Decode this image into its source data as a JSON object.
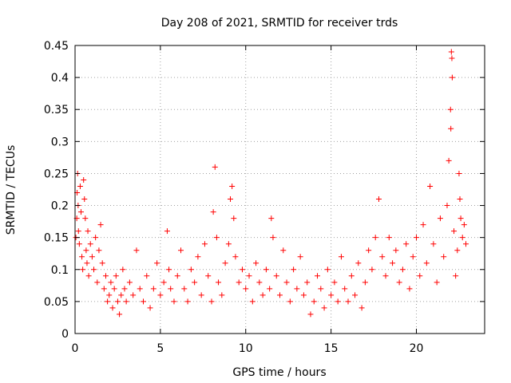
{
  "chart_data": {
    "type": "scatter",
    "title": "Day 208 of 2021, SRMTID for receiver trds",
    "xlabel": "GPS time / hours",
    "ylabel": "SRMTID / TECUs",
    "xlim": [
      0,
      24
    ],
    "ylim": [
      0,
      0.45
    ],
    "x_ticks": [
      0,
      5,
      10,
      15,
      20
    ],
    "x_tick_labels": [
      "0",
      "5",
      "10",
      "15",
      "20"
    ],
    "y_ticks": [
      0,
      0.05,
      0.1,
      0.15,
      0.2,
      0.25,
      0.3,
      0.35,
      0.4,
      0.45
    ],
    "y_tick_labels": [
      "0",
      "0.05",
      "0.1",
      "0.15",
      "0.2",
      "0.25",
      "0.3",
      "0.35",
      "0.4",
      "0.45"
    ],
    "grid": true,
    "marker": "plus",
    "color": "#ff0000",
    "series": [
      {
        "points": [
          [
            0.05,
            0.15
          ],
          [
            0.1,
            0.18
          ],
          [
            0.12,
            0.22
          ],
          [
            0.15,
            0.25
          ],
          [
            0.18,
            0.2
          ],
          [
            0.2,
            0.16
          ],
          [
            0.25,
            0.14
          ],
          [
            0.3,
            0.23
          ],
          [
            0.35,
            0.19
          ],
          [
            0.4,
            0.12
          ],
          [
            0.45,
            0.1
          ],
          [
            0.5,
            0.24
          ],
          [
            0.55,
            0.21
          ],
          [
            0.6,
            0.18
          ],
          [
            0.65,
            0.13
          ],
          [
            0.7,
            0.11
          ],
          [
            0.75,
            0.16
          ],
          [
            0.8,
            0.09
          ],
          [
            0.9,
            0.14
          ],
          [
            1.0,
            0.12
          ],
          [
            1.1,
            0.1
          ],
          [
            1.2,
            0.15
          ],
          [
            1.3,
            0.08
          ],
          [
            1.4,
            0.13
          ],
          [
            1.5,
            0.17
          ],
          [
            1.6,
            0.11
          ],
          [
            1.7,
            0.07
          ],
          [
            1.8,
            0.09
          ],
          [
            1.9,
            0.05
          ],
          [
            2.0,
            0.06
          ],
          [
            2.1,
            0.08
          ],
          [
            2.2,
            0.04
          ],
          [
            2.3,
            0.07
          ],
          [
            2.4,
            0.09
          ],
          [
            2.5,
            0.05
          ],
          [
            2.6,
            0.03
          ],
          [
            2.7,
            0.06
          ],
          [
            2.8,
            0.1
          ],
          [
            2.9,
            0.07
          ],
          [
            3.0,
            0.05
          ],
          [
            3.2,
            0.08
          ],
          [
            3.4,
            0.06
          ],
          [
            3.6,
            0.13
          ],
          [
            3.8,
            0.07
          ],
          [
            4.0,
            0.05
          ],
          [
            4.2,
            0.09
          ],
          [
            4.4,
            0.04
          ],
          [
            4.6,
            0.07
          ],
          [
            4.8,
            0.11
          ],
          [
            5.0,
            0.06
          ],
          [
            5.2,
            0.08
          ],
          [
            5.4,
            0.16
          ],
          [
            5.5,
            0.1
          ],
          [
            5.6,
            0.07
          ],
          [
            5.8,
            0.05
          ],
          [
            6.0,
            0.09
          ],
          [
            6.2,
            0.13
          ],
          [
            6.4,
            0.07
          ],
          [
            6.6,
            0.05
          ],
          [
            6.8,
            0.1
          ],
          [
            7.0,
            0.08
          ],
          [
            7.2,
            0.12
          ],
          [
            7.4,
            0.06
          ],
          [
            7.6,
            0.14
          ],
          [
            7.8,
            0.09
          ],
          [
            8.0,
            0.05
          ],
          [
            8.1,
            0.19
          ],
          [
            8.2,
            0.26
          ],
          [
            8.3,
            0.15
          ],
          [
            8.4,
            0.08
          ],
          [
            8.6,
            0.06
          ],
          [
            8.8,
            0.11
          ],
          [
            9.0,
            0.14
          ],
          [
            9.1,
            0.21
          ],
          [
            9.2,
            0.23
          ],
          [
            9.3,
            0.18
          ],
          [
            9.4,
            0.12
          ],
          [
            9.6,
            0.08
          ],
          [
            9.8,
            0.1
          ],
          [
            10.0,
            0.07
          ],
          [
            10.2,
            0.09
          ],
          [
            10.4,
            0.05
          ],
          [
            10.6,
            0.11
          ],
          [
            10.8,
            0.08
          ],
          [
            11.0,
            0.06
          ],
          [
            11.2,
            0.1
          ],
          [
            11.4,
            0.07
          ],
          [
            11.5,
            0.18
          ],
          [
            11.6,
            0.15
          ],
          [
            11.8,
            0.09
          ],
          [
            12.0,
            0.06
          ],
          [
            12.2,
            0.13
          ],
          [
            12.4,
            0.08
          ],
          [
            12.6,
            0.05
          ],
          [
            12.8,
            0.1
          ],
          [
            13.0,
            0.07
          ],
          [
            13.2,
            0.12
          ],
          [
            13.4,
            0.06
          ],
          [
            13.6,
            0.08
          ],
          [
            13.8,
            0.03
          ],
          [
            14.0,
            0.05
          ],
          [
            14.2,
            0.09
          ],
          [
            14.4,
            0.07
          ],
          [
            14.6,
            0.04
          ],
          [
            14.8,
            0.1
          ],
          [
            15.0,
            0.06
          ],
          [
            15.2,
            0.08
          ],
          [
            15.4,
            0.05
          ],
          [
            15.6,
            0.12
          ],
          [
            15.8,
            0.07
          ],
          [
            16.0,
            0.05
          ],
          [
            16.2,
            0.09
          ],
          [
            16.4,
            0.06
          ],
          [
            16.6,
            0.11
          ],
          [
            16.8,
            0.04
          ],
          [
            17.0,
            0.08
          ],
          [
            17.2,
            0.13
          ],
          [
            17.4,
            0.1
          ],
          [
            17.6,
            0.15
          ],
          [
            17.8,
            0.21
          ],
          [
            18.0,
            0.12
          ],
          [
            18.2,
            0.09
          ],
          [
            18.4,
            0.15
          ],
          [
            18.6,
            0.11
          ],
          [
            18.8,
            0.13
          ],
          [
            19.0,
            0.08
          ],
          [
            19.2,
            0.1
          ],
          [
            19.4,
            0.14
          ],
          [
            19.6,
            0.07
          ],
          [
            19.8,
            0.12
          ],
          [
            20.0,
            0.15
          ],
          [
            20.2,
            0.09
          ],
          [
            20.4,
            0.17
          ],
          [
            20.6,
            0.11
          ],
          [
            20.8,
            0.23
          ],
          [
            21.0,
            0.14
          ],
          [
            21.2,
            0.08
          ],
          [
            21.4,
            0.18
          ],
          [
            21.6,
            0.12
          ],
          [
            21.8,
            0.2
          ],
          [
            21.9,
            0.27
          ],
          [
            22.0,
            0.35
          ],
          [
            22.02,
            0.32
          ],
          [
            22.05,
            0.44
          ],
          [
            22.08,
            0.43
          ],
          [
            22.1,
            0.4
          ],
          [
            22.2,
            0.16
          ],
          [
            22.3,
            0.09
          ],
          [
            22.4,
            0.13
          ],
          [
            22.5,
            0.25
          ],
          [
            22.55,
            0.21
          ],
          [
            22.6,
            0.18
          ],
          [
            22.7,
            0.15
          ],
          [
            22.8,
            0.17
          ],
          [
            22.9,
            0.14
          ]
        ]
      }
    ]
  }
}
